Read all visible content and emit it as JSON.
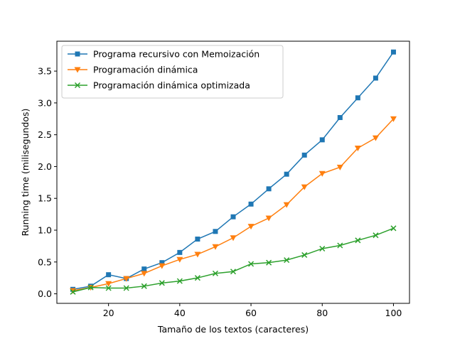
{
  "chart_data": {
    "type": "line",
    "xlabel": "Tamaño de los textos (caracteres)",
    "ylabel": "Running time (milisegundos)",
    "xlim": [
      5.5,
      104.5
    ],
    "ylim": [
      -0.15,
      3.97
    ],
    "xticks": [
      20,
      40,
      60,
      80,
      100
    ],
    "yticks": [
      0.0,
      0.5,
      1.0,
      1.5,
      2.0,
      2.5,
      3.0,
      3.5
    ],
    "ytick_labels": [
      "0.0",
      "0.5",
      "1.0",
      "1.5",
      "2.0",
      "2.5",
      "3.0",
      "3.5"
    ],
    "grid": false,
    "legend_position": "top-left",
    "x": [
      10,
      15,
      20,
      25,
      30,
      35,
      40,
      45,
      50,
      55,
      60,
      65,
      70,
      75,
      80,
      85,
      90,
      95,
      100
    ],
    "series": [
      {
        "name": "Programa recursivo con Memoización",
        "color": "#1f77b4",
        "marker": "square",
        "values": [
          0.07,
          0.12,
          0.3,
          0.24,
          0.39,
          0.49,
          0.65,
          0.86,
          0.98,
          1.21,
          1.41,
          1.65,
          1.88,
          2.18,
          2.42,
          2.77,
          3.08,
          3.39,
          3.8
        ]
      },
      {
        "name": "Programación dinámica",
        "color": "#ff7f0e",
        "marker": "triangle-down",
        "values": [
          0.05,
          0.1,
          0.16,
          0.24,
          0.32,
          0.44,
          0.54,
          0.62,
          0.74,
          0.88,
          1.06,
          1.19,
          1.4,
          1.68,
          1.89,
          1.99,
          2.29,
          2.45,
          2.75
        ]
      },
      {
        "name": "Programación dinámica optimizada",
        "color": "#2ca02c",
        "marker": "x",
        "values": [
          0.03,
          0.1,
          0.09,
          0.09,
          0.12,
          0.17,
          0.2,
          0.25,
          0.32,
          0.35,
          0.47,
          0.49,
          0.53,
          0.61,
          0.71,
          0.76,
          0.84,
          0.92,
          1.03
        ]
      }
    ]
  }
}
